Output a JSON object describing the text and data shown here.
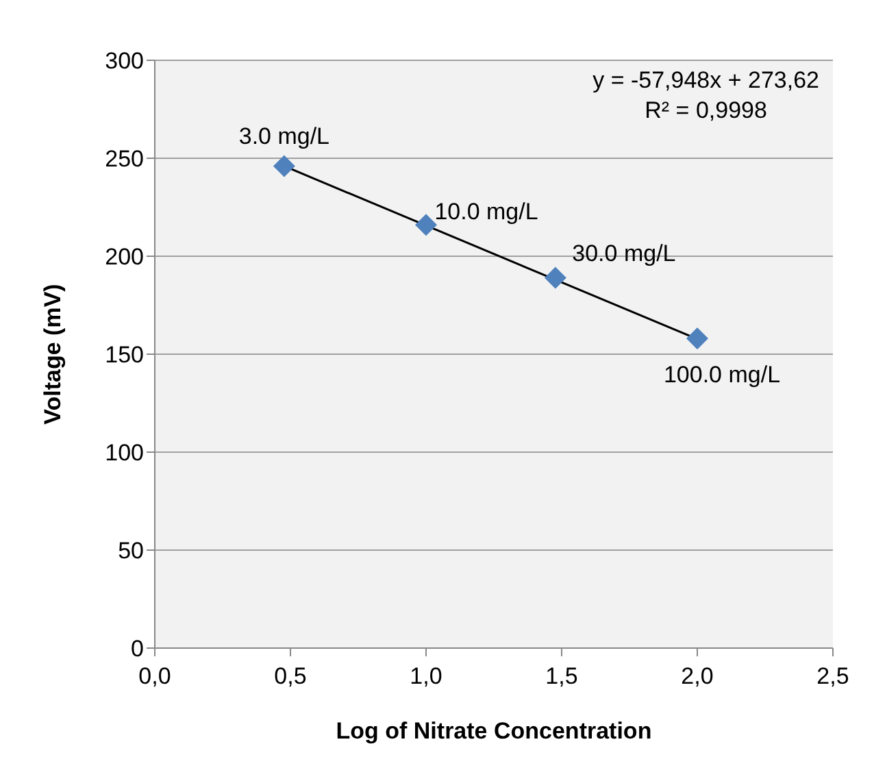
{
  "chart_data": {
    "type": "scatter",
    "xlabel": "Log of Nitrate Concentration",
    "ylabel": "Voltage (mV)",
    "xlim": [
      0,
      2.5
    ],
    "xticks": [
      {
        "value": 0,
        "label": "0,0"
      },
      {
        "value": 0.5,
        "label": "0,5"
      },
      {
        "value": 1,
        "label": "1,0"
      },
      {
        "value": 1.5,
        "label": "1,5"
      },
      {
        "value": 2,
        "label": "2,0"
      },
      {
        "value": 2.5,
        "label": "2,5"
      }
    ],
    "ylim": [
      0,
      300
    ],
    "yticks": [
      0,
      50,
      100,
      150,
      200,
      250,
      300
    ],
    "grid": "y",
    "marker": "diamond",
    "series": [
      {
        "color": "#4f81bd",
        "x": [
          0.477,
          1.0,
          1.477,
          2.0
        ],
        "values": [
          246,
          216,
          189,
          158
        ]
      },
      {
        "type": "line",
        "color": "#000000",
        "x": [
          0.477,
          2.0
        ],
        "values": [
          246.0,
          157.7
        ],
        "marker": "none"
      }
    ],
    "annotations": [
      {
        "text": "3.0 mg/L",
        "x": 0.477,
        "y": 246
      },
      {
        "text": "10.0 mg/L",
        "x": 1.0,
        "y": 216
      },
      {
        "text": "30.0 mg/L",
        "x": 1.477,
        "y": 189
      },
      {
        "text": "100.0 mg/L",
        "x": 2.0,
        "y": 158
      },
      "y = -57,948x + 273,62",
      "R² = 0,9998"
    ]
  }
}
